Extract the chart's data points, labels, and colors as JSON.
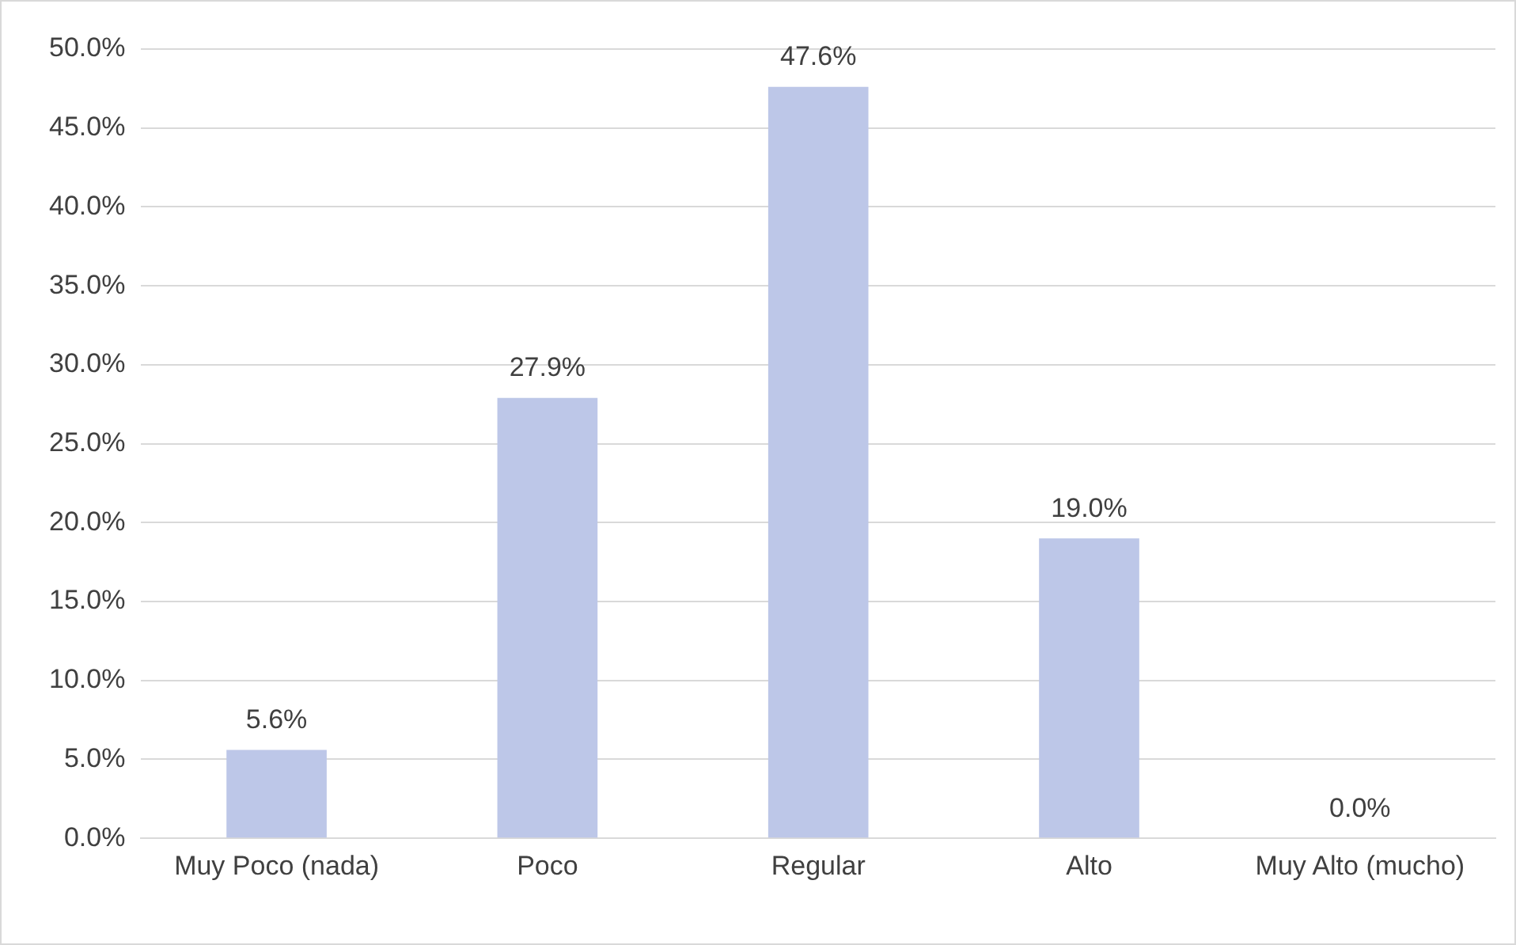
{
  "chart_data": {
    "type": "bar",
    "categories": [
      "Muy Poco (nada)",
      "Poco",
      "Regular",
      "Alto",
      "Muy Alto (mucho)"
    ],
    "values": [
      5.6,
      27.9,
      47.6,
      19.0,
      0.0
    ],
    "value_labels": [
      "5.6%",
      "27.9%",
      "47.6%",
      "19.0%",
      "0.0%"
    ],
    "color": "#bdc7e8",
    "ylim": [
      0,
      50
    ],
    "yticks": [
      {
        "value": 0,
        "label": "0.0%"
      },
      {
        "value": 5,
        "label": "5.0%"
      },
      {
        "value": 10,
        "label": "10.0%"
      },
      {
        "value": 15,
        "label": "15.0%"
      },
      {
        "value": 20,
        "label": "20.0%"
      },
      {
        "value": 25,
        "label": "25.0%"
      },
      {
        "value": 30,
        "label": "30.0%"
      },
      {
        "value": 35,
        "label": "35.0%"
      },
      {
        "value": 40,
        "label": "40.0%"
      },
      {
        "value": 45,
        "label": "45.0%"
      },
      {
        "value": 50,
        "label": "50.0%"
      }
    ],
    "grid": "y"
  }
}
